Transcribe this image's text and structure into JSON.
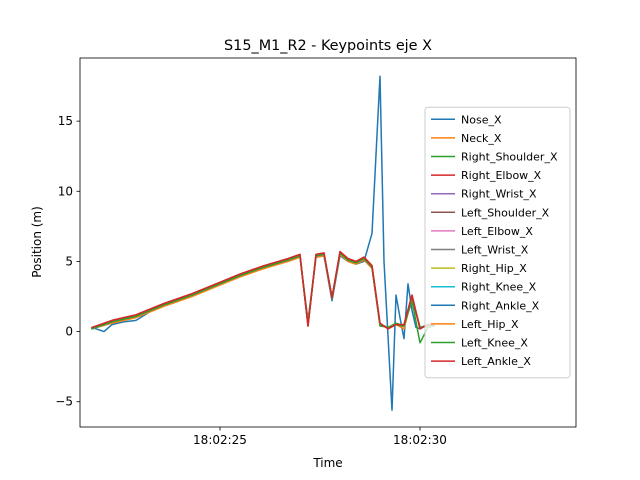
{
  "chart_data": {
    "type": "line",
    "title": "S15_M1_R2 - Keypoints eje X",
    "xlabel": "Time",
    "ylabel": "Position (m)",
    "xlim": [
      "18:02:21.5",
      "18:02:33.9"
    ],
    "ylim": [
      -6.8,
      19.5
    ],
    "x_ticks": [
      "18:02:25",
      "18:02:30"
    ],
    "y_ticks": [
      -5,
      0,
      5,
      10,
      15
    ],
    "grid": false,
    "legend_position": "center right",
    "series_colors": [
      "#1f77b4",
      "#ff7f0e",
      "#2ca02c",
      "#d62728",
      "#9467bd",
      "#8c564b",
      "#e377c2",
      "#7f7f7f",
      "#bcbd22",
      "#17becf",
      "#1f77b4",
      "#ff7f0e",
      "#2ca02c",
      "#d62728"
    ],
    "series": [
      {
        "name": "Nose_X",
        "x": [
          "18:02:21.8",
          "18:02:22.1",
          "18:02:22.3",
          "18:02:22.6",
          "18:02:22.9",
          "18:02:23.3",
          "18:02:23.6",
          "18:02:23.9",
          "18:02:24.3",
          "18:02:24.6",
          "18:02:24.9",
          "18:02:25.2",
          "18:02:25.5",
          "18:02:25.8",
          "18:02:26.1",
          "18:02:26.4",
          "18:02:26.7",
          "18:02:27.0",
          "18:02:27.2",
          "18:02:27.4",
          "18:02:27.6",
          "18:02:27.8",
          "18:02:28.0",
          "18:02:28.2",
          "18:02:28.4",
          "18:02:28.6",
          "18:02:28.8",
          "18:02:29.0",
          "18:02:29.1",
          "18:02:29.3",
          "18:02:29.4",
          "18:02:29.5",
          "18:02:29.6",
          "18:02:29.7",
          "18:02:29.8",
          "18:02:29.9",
          "18:02:30.0",
          "18:02:30.1",
          "18:02:30.2",
          "18:02:30.35"
        ],
        "values": [
          0.3,
          0.0,
          0.5,
          0.7,
          0.8,
          1.5,
          1.9,
          2.3,
          2.6,
          3.0,
          3.4,
          3.7,
          4.0,
          4.3,
          4.5,
          4.8,
          5.0,
          5.3,
          0.8,
          5.3,
          5.4,
          2.2,
          5.4,
          5.0,
          4.8,
          5.0,
          7.0,
          18.2,
          5.0,
          -5.6,
          2.6,
          1.0,
          -0.5,
          3.4,
          1.5,
          0.3,
          0.2,
          0.4,
          0.3,
          0.4
        ]
      },
      {
        "name": "Neck_X",
        "x": [
          "18:02:21.8",
          "18:02:22.3",
          "18:02:22.9",
          "18:02:23.6",
          "18:02:24.3",
          "18:02:24.9",
          "18:02:25.5",
          "18:02:26.1",
          "18:02:26.7",
          "18:02:27.0",
          "18:02:27.2",
          "18:02:27.4",
          "18:02:27.6",
          "18:02:27.8",
          "18:02:28.0",
          "18:02:28.2",
          "18:02:28.4",
          "18:02:28.6",
          "18:02:28.8",
          "18:02:29.0",
          "18:02:29.2",
          "18:02:29.4",
          "18:02:29.6",
          "18:02:29.8",
          "18:02:30.0",
          "18:02:30.2",
          "18:02:30.35"
        ],
        "values": [
          0.2,
          0.6,
          1.0,
          1.8,
          2.5,
          3.2,
          3.9,
          4.5,
          5.0,
          5.3,
          0.6,
          5.3,
          5.4,
          2.5,
          5.5,
          5.0,
          4.8,
          5.1,
          4.5,
          0.5,
          0.3,
          0.5,
          0.2,
          2.4,
          0.3,
          0.4,
          0.4
        ]
      },
      {
        "name": "Right_Shoulder_X",
        "x": [
          "18:02:21.8",
          "18:02:22.3",
          "18:02:22.9",
          "18:02:23.6",
          "18:02:24.3",
          "18:02:24.9",
          "18:02:25.5",
          "18:02:26.1",
          "18:02:26.7",
          "18:02:27.0",
          "18:02:27.2",
          "18:02:27.4",
          "18:02:27.6",
          "18:02:27.8",
          "18:02:28.0",
          "18:02:28.2",
          "18:02:28.4",
          "18:02:28.6",
          "18:02:28.8",
          "18:02:29.0",
          "18:02:29.2",
          "18:02:29.4",
          "18:02:29.6",
          "18:02:29.8",
          "18:02:30.0",
          "18:02:30.2",
          "18:02:30.35"
        ],
        "values": [
          0.2,
          0.7,
          1.1,
          1.9,
          2.6,
          3.3,
          4.0,
          4.6,
          5.1,
          5.4,
          0.5,
          5.4,
          5.5,
          2.3,
          5.6,
          5.1,
          4.9,
          5.2,
          4.6,
          0.4,
          0.3,
          0.6,
          0.4,
          2.2,
          -0.8,
          0.3,
          0.5
        ]
      },
      {
        "name": "Right_Elbow_X",
        "x": [
          "18:02:21.8",
          "18:02:22.3",
          "18:02:22.9",
          "18:02:23.6",
          "18:02:24.3",
          "18:02:24.9",
          "18:02:25.5",
          "18:02:26.1",
          "18:02:26.7",
          "18:02:27.0",
          "18:02:27.2",
          "18:02:27.4",
          "18:02:27.6",
          "18:02:27.8",
          "18:02:28.0",
          "18:02:28.2",
          "18:02:28.4",
          "18:02:28.6",
          "18:02:28.8",
          "18:02:29.0",
          "18:02:29.2",
          "18:02:29.4",
          "18:02:29.6",
          "18:02:29.8",
          "18:02:30.0",
          "18:02:30.2",
          "18:02:30.35"
        ],
        "values": [
          0.3,
          0.8,
          1.2,
          2.0,
          2.7,
          3.4,
          4.1,
          4.7,
          5.2,
          5.5,
          0.4,
          5.5,
          5.6,
          2.4,
          5.7,
          5.2,
          5.0,
          5.3,
          4.7,
          0.6,
          0.2,
          0.5,
          0.5,
          2.6,
          0.2,
          0.5,
          0.5
        ]
      },
      {
        "name": "Right_Wrist_X",
        "x": [
          "18:02:21.8",
          "18:02:22.3",
          "18:02:22.9",
          "18:02:23.6",
          "18:02:24.3",
          "18:02:24.9",
          "18:02:25.5",
          "18:02:26.1",
          "18:02:26.7",
          "18:02:27.0",
          "18:02:27.2",
          "18:02:27.4",
          "18:02:27.6",
          "18:02:27.8",
          "18:02:28.0",
          "18:02:28.2",
          "18:02:28.4",
          "18:02:28.6",
          "18:02:28.8",
          "18:02:29.0",
          "18:02:29.2",
          "18:02:29.4",
          "18:02:29.6",
          "18:02:29.8",
          "18:02:30.0",
          "18:02:30.2",
          "18:02:30.35"
        ],
        "values": [
          0.2,
          0.7,
          1.1,
          1.9,
          2.6,
          3.3,
          4.0,
          4.6,
          5.1,
          5.4,
          0.5,
          5.4,
          5.5,
          2.4,
          5.6,
          5.1,
          4.9,
          5.2,
          4.6,
          0.5,
          0.3,
          0.5,
          0.4,
          2.4,
          0.3,
          0.4,
          0.4
        ]
      },
      {
        "name": "Left_Shoulder_X",
        "x": [
          "18:02:21.8",
          "18:02:22.3",
          "18:02:22.9",
          "18:02:23.6",
          "18:02:24.3",
          "18:02:24.9",
          "18:02:25.5",
          "18:02:26.1",
          "18:02:26.7",
          "18:02:27.0",
          "18:02:27.2",
          "18:02:27.4",
          "18:02:27.6",
          "18:02:27.8",
          "18:02:28.0",
          "18:02:28.2",
          "18:02:28.4",
          "18:02:28.6",
          "18:02:28.8",
          "18:02:29.0",
          "18:02:29.2",
          "18:02:29.4",
          "18:02:29.6",
          "18:02:29.8",
          "18:02:30.0",
          "18:02:30.2",
          "18:02:30.35"
        ],
        "values": [
          0.2,
          0.7,
          1.1,
          1.9,
          2.6,
          3.3,
          4.0,
          4.6,
          5.1,
          5.4,
          0.5,
          5.4,
          5.5,
          2.4,
          5.6,
          5.1,
          4.9,
          5.2,
          4.6,
          0.5,
          0.3,
          0.5,
          0.4,
          2.4,
          0.3,
          0.4,
          0.4
        ]
      },
      {
        "name": "Left_Elbow_X",
        "x": [
          "18:02:21.8",
          "18:02:22.3",
          "18:02:22.9",
          "18:02:23.6",
          "18:02:24.3",
          "18:02:24.9",
          "18:02:25.5",
          "18:02:26.1",
          "18:02:26.7",
          "18:02:27.0",
          "18:02:27.2",
          "18:02:27.4",
          "18:02:27.6",
          "18:02:27.8",
          "18:02:28.0",
          "18:02:28.2",
          "18:02:28.4",
          "18:02:28.6",
          "18:02:28.8",
          "18:02:29.0",
          "18:02:29.2",
          "18:02:29.4",
          "18:02:29.6",
          "18:02:29.8",
          "18:02:30.0",
          "18:02:30.2",
          "18:02:30.35"
        ],
        "values": [
          0.2,
          0.7,
          1.1,
          1.9,
          2.6,
          3.3,
          4.0,
          4.6,
          5.1,
          5.4,
          0.5,
          5.4,
          5.5,
          2.4,
          5.6,
          5.1,
          4.9,
          5.2,
          4.6,
          0.5,
          0.3,
          0.5,
          0.4,
          2.4,
          0.3,
          0.4,
          0.4
        ]
      },
      {
        "name": "Left_Wrist_X",
        "x": [
          "18:02:21.8",
          "18:02:22.3",
          "18:02:22.9",
          "18:02:23.6",
          "18:02:24.3",
          "18:02:24.9",
          "18:02:25.5",
          "18:02:26.1",
          "18:02:26.7",
          "18:02:27.0",
          "18:02:27.2",
          "18:02:27.4",
          "18:02:27.6",
          "18:02:27.8",
          "18:02:28.0",
          "18:02:28.2",
          "18:02:28.4",
          "18:02:28.6",
          "18:02:28.8",
          "18:02:29.0",
          "18:02:29.2",
          "18:02:29.4",
          "18:02:29.6",
          "18:02:29.8",
          "18:02:30.0",
          "18:02:30.2",
          "18:02:30.35"
        ],
        "values": [
          0.2,
          0.7,
          1.1,
          1.9,
          2.6,
          3.3,
          4.0,
          4.6,
          5.1,
          5.4,
          0.5,
          5.4,
          5.5,
          2.4,
          5.6,
          5.1,
          4.9,
          5.2,
          4.6,
          0.5,
          0.3,
          0.5,
          0.4,
          2.4,
          0.3,
          0.4,
          0.4
        ]
      },
      {
        "name": "Right_Hip_X",
        "x": [
          "18:02:21.8",
          "18:02:22.3",
          "18:02:22.9",
          "18:02:23.6",
          "18:02:24.3",
          "18:02:24.9",
          "18:02:25.5",
          "18:02:26.1",
          "18:02:26.7",
          "18:02:27.0",
          "18:02:27.2",
          "18:02:27.4",
          "18:02:27.6",
          "18:02:27.8",
          "18:02:28.0",
          "18:02:28.2",
          "18:02:28.4",
          "18:02:28.6",
          "18:02:28.8",
          "18:02:29.0",
          "18:02:29.2",
          "18:02:29.4",
          "18:02:29.6",
          "18:02:29.8",
          "18:02:30.0",
          "18:02:30.2",
          "18:02:30.35"
        ],
        "values": [
          0.2,
          0.7,
          1.1,
          1.9,
          2.6,
          3.3,
          4.0,
          4.6,
          5.1,
          5.4,
          0.5,
          5.4,
          5.5,
          2.4,
          5.6,
          5.1,
          4.9,
          5.2,
          4.6,
          0.5,
          0.3,
          0.5,
          0.4,
          2.4,
          0.3,
          0.4,
          0.4
        ]
      },
      {
        "name": "Right_Knee_X",
        "x": [
          "18:02:21.8",
          "18:02:22.3",
          "18:02:22.9",
          "18:02:23.6",
          "18:02:24.3",
          "18:02:24.9",
          "18:02:25.5",
          "18:02:26.1",
          "18:02:26.7",
          "18:02:27.0",
          "18:02:27.2",
          "18:02:27.4",
          "18:02:27.6",
          "18:02:27.8",
          "18:02:28.0",
          "18:02:28.2",
          "18:02:28.4",
          "18:02:28.6",
          "18:02:28.8",
          "18:02:29.0",
          "18:02:29.2",
          "18:02:29.4",
          "18:02:29.6",
          "18:02:29.8",
          "18:02:30.0",
          "18:02:30.2",
          "18:02:30.35"
        ],
        "values": [
          0.2,
          0.7,
          1.1,
          1.9,
          2.6,
          3.3,
          4.0,
          4.6,
          5.1,
          5.4,
          0.5,
          5.4,
          5.5,
          2.4,
          5.6,
          5.1,
          4.9,
          5.2,
          4.6,
          0.5,
          0.3,
          0.5,
          0.4,
          2.4,
          0.3,
          0.4,
          0.4
        ]
      },
      {
        "name": "Right_Ankle_X",
        "x": [
          "18:02:21.8",
          "18:02:22.3",
          "18:02:22.9",
          "18:02:23.6",
          "18:02:24.3",
          "18:02:24.9",
          "18:02:25.5",
          "18:02:26.1",
          "18:02:26.7",
          "18:02:27.0",
          "18:02:27.2",
          "18:02:27.4",
          "18:02:27.6",
          "18:02:27.8",
          "18:02:28.0",
          "18:02:28.2",
          "18:02:28.4",
          "18:02:28.6",
          "18:02:28.8",
          "18:02:29.0",
          "18:02:29.2",
          "18:02:29.4",
          "18:02:29.6",
          "18:02:29.8",
          "18:02:30.0",
          "18:02:30.2",
          "18:02:30.35"
        ],
        "values": [
          0.2,
          0.7,
          1.1,
          1.9,
          2.6,
          3.3,
          4.0,
          4.6,
          5.1,
          5.4,
          0.5,
          5.4,
          5.5,
          2.4,
          5.6,
          5.1,
          4.9,
          5.2,
          4.6,
          0.5,
          0.3,
          0.5,
          0.4,
          2.4,
          0.3,
          0.4,
          0.4
        ]
      },
      {
        "name": "Left_Hip_X",
        "x": [
          "18:02:21.8",
          "18:02:22.3",
          "18:02:22.9",
          "18:02:23.6",
          "18:02:24.3",
          "18:02:24.9",
          "18:02:25.5",
          "18:02:26.1",
          "18:02:26.7",
          "18:02:27.0",
          "18:02:27.2",
          "18:02:27.4",
          "18:02:27.6",
          "18:02:27.8",
          "18:02:28.0",
          "18:02:28.2",
          "18:02:28.4",
          "18:02:28.6",
          "18:02:28.8",
          "18:02:29.0",
          "18:02:29.2",
          "18:02:29.4",
          "18:02:29.6",
          "18:02:29.8",
          "18:02:30.0",
          "18:02:30.2",
          "18:02:30.35"
        ],
        "values": [
          0.2,
          0.7,
          1.1,
          1.9,
          2.6,
          3.3,
          4.0,
          4.6,
          5.1,
          5.4,
          0.5,
          5.4,
          5.5,
          2.4,
          5.6,
          5.1,
          4.9,
          5.2,
          4.6,
          0.5,
          0.3,
          0.5,
          0.4,
          2.4,
          0.3,
          0.4,
          0.4
        ]
      },
      {
        "name": "Left_Knee_X",
        "x": [
          "18:02:21.8",
          "18:02:22.3",
          "18:02:22.9",
          "18:02:23.6",
          "18:02:24.3",
          "18:02:24.9",
          "18:02:25.5",
          "18:02:26.1",
          "18:02:26.7",
          "18:02:27.0",
          "18:02:27.2",
          "18:02:27.4",
          "18:02:27.6",
          "18:02:27.8",
          "18:02:28.0",
          "18:02:28.2",
          "18:02:28.4",
          "18:02:28.6",
          "18:02:28.8",
          "18:02:29.0",
          "18:02:29.2",
          "18:02:29.4",
          "18:02:29.6",
          "18:02:29.8",
          "18:02:30.0",
          "18:02:30.2",
          "18:02:30.35"
        ],
        "values": [
          0.2,
          0.7,
          1.1,
          1.9,
          2.6,
          3.3,
          4.0,
          4.6,
          5.1,
          5.4,
          0.5,
          5.4,
          5.5,
          2.4,
          5.6,
          5.1,
          4.9,
          5.2,
          4.6,
          0.5,
          0.3,
          0.5,
          0.4,
          2.4,
          0.3,
          0.4,
          0.4
        ]
      },
      {
        "name": "Left_Ankle_X",
        "x": [
          "18:02:21.8",
          "18:02:22.3",
          "18:02:22.9",
          "18:02:23.6",
          "18:02:24.3",
          "18:02:24.9",
          "18:02:25.5",
          "18:02:26.1",
          "18:02:26.7",
          "18:02:27.0",
          "18:02:27.2",
          "18:02:27.4",
          "18:02:27.6",
          "18:02:27.8",
          "18:02:28.0",
          "18:02:28.2",
          "18:02:28.4",
          "18:02:28.6",
          "18:02:28.8",
          "18:02:29.0",
          "18:02:29.2",
          "18:02:29.4",
          "18:02:29.6",
          "18:02:29.8",
          "18:02:30.0",
          "18:02:30.2",
          "18:02:30.35"
        ],
        "values": [
          0.3,
          0.8,
          1.2,
          2.0,
          2.7,
          3.4,
          4.1,
          4.7,
          5.2,
          5.5,
          0.4,
          5.5,
          5.6,
          2.4,
          5.7,
          5.2,
          5.0,
          5.3,
          4.7,
          0.6,
          0.2,
          0.5,
          0.5,
          2.6,
          0.2,
          0.5,
          0.5
        ]
      }
    ]
  }
}
